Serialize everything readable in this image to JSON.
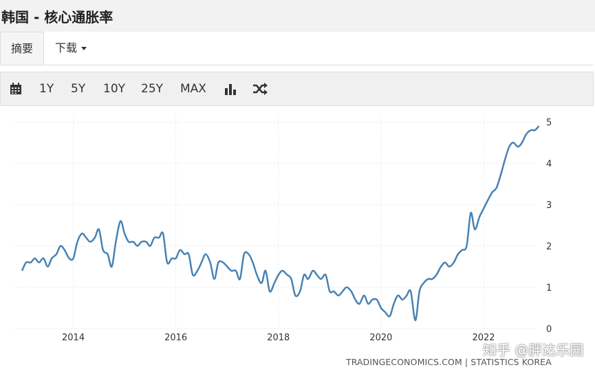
{
  "header": {
    "title": "韩国 - 核心通胀率"
  },
  "tabs": [
    {
      "label": "摘要"
    },
    {
      "label": "下载"
    }
  ],
  "toolbar": {
    "calendar_icon": "calendar-icon",
    "ranges": [
      "1Y",
      "5Y",
      "10Y",
      "25Y",
      "MAX"
    ],
    "bar_chart_icon": "bar-chart-icon",
    "shuffle_icon": "shuffle-icon"
  },
  "footer": {
    "source": "TRADINGECONOMICS.COM | STATISTICS KOREA",
    "watermark": "知乎 @胖达乐园"
  },
  "colors": {
    "line": "#4682b4",
    "accent": "#333333"
  },
  "chart_data": {
    "type": "line",
    "title": "",
    "xlabel": "",
    "ylabel": "",
    "x_ticks": [
      "2014",
      "2016",
      "2018",
      "2020",
      "2022"
    ],
    "y_ticks": [
      "0",
      "1",
      "2",
      "3",
      "4",
      "5"
    ],
    "ylim": [
      0,
      5
    ],
    "xlim": [
      2013.0,
      2023.1
    ],
    "grid": true,
    "y_axis_side": "right",
    "series": [
      {
        "x": [
          2013.0,
          2013.08,
          2013.17,
          2013.25,
          2013.33,
          2013.42,
          2013.5,
          2013.58,
          2013.67,
          2013.75,
          2013.83,
          2013.92,
          2014.0,
          2014.08,
          2014.17,
          2014.25,
          2014.33,
          2014.42,
          2014.5,
          2014.58,
          2014.67,
          2014.75,
          2014.83,
          2014.92,
          2015.0,
          2015.08,
          2015.17,
          2015.25,
          2015.33,
          2015.42,
          2015.5,
          2015.58,
          2015.67,
          2015.75,
          2015.83,
          2015.92,
          2016.0,
          2016.08,
          2016.17,
          2016.25,
          2016.33,
          2016.42,
          2016.5,
          2016.58,
          2016.67,
          2016.75,
          2016.83,
          2016.92,
          2017.0,
          2017.08,
          2017.17,
          2017.25,
          2017.33,
          2017.42,
          2017.5,
          2017.58,
          2017.67,
          2017.75,
          2017.83,
          2017.92,
          2018.0,
          2018.08,
          2018.17,
          2018.25,
          2018.33,
          2018.42,
          2018.5,
          2018.58,
          2018.67,
          2018.75,
          2018.83,
          2018.92,
          2019.0,
          2019.08,
          2019.17,
          2019.25,
          2019.33,
          2019.42,
          2019.5,
          2019.58,
          2019.67,
          2019.75,
          2019.83,
          2019.92,
          2020.0,
          2020.08,
          2020.17,
          2020.25,
          2020.33,
          2020.42,
          2020.5,
          2020.58,
          2020.67,
          2020.75,
          2020.83,
          2020.92,
          2021.0,
          2021.08,
          2021.17,
          2021.25,
          2021.33,
          2021.42,
          2021.5,
          2021.58,
          2021.67,
          2021.75,
          2021.83,
          2021.92,
          2022.0,
          2022.08,
          2022.17,
          2022.25,
          2022.33,
          2022.42,
          2022.5,
          2022.58,
          2022.67,
          2022.75,
          2022.83,
          2022.92,
          2023.0,
          2023.08
        ],
        "values": [
          1.4,
          1.6,
          1.6,
          1.7,
          1.6,
          1.7,
          1.5,
          1.7,
          1.8,
          2.0,
          1.9,
          1.7,
          1.7,
          2.1,
          2.3,
          2.2,
          2.1,
          2.2,
          2.4,
          1.9,
          1.8,
          1.5,
          2.1,
          2.6,
          2.3,
          2.1,
          2.1,
          2.0,
          2.1,
          2.1,
          2.0,
          2.2,
          2.2,
          2.3,
          1.6,
          1.7,
          1.7,
          1.9,
          1.8,
          1.8,
          1.3,
          1.4,
          1.6,
          1.8,
          1.6,
          1.2,
          1.6,
          1.6,
          1.5,
          1.4,
          1.4,
          1.2,
          1.8,
          1.8,
          1.6,
          1.3,
          1.1,
          1.4,
          0.9,
          1.1,
          1.3,
          1.4,
          1.3,
          1.2,
          0.8,
          0.9,
          1.3,
          1.2,
          1.4,
          1.3,
          1.2,
          1.3,
          0.9,
          0.9,
          0.8,
          0.9,
          1.0,
          0.9,
          0.7,
          0.6,
          0.8,
          0.6,
          0.7,
          0.7,
          0.5,
          0.4,
          0.3,
          0.6,
          0.8,
          0.7,
          0.8,
          0.9,
          0.2,
          0.9,
          1.1,
          1.2,
          1.2,
          1.3,
          1.5,
          1.6,
          1.5,
          1.6,
          1.8,
          1.9,
          2.0,
          2.8,
          2.4,
          2.7,
          2.9,
          3.1,
          3.3,
          3.4,
          3.7,
          4.1,
          4.4,
          4.5,
          4.4,
          4.5,
          4.7,
          4.8,
          4.8,
          4.9
        ]
      }
    ]
  }
}
